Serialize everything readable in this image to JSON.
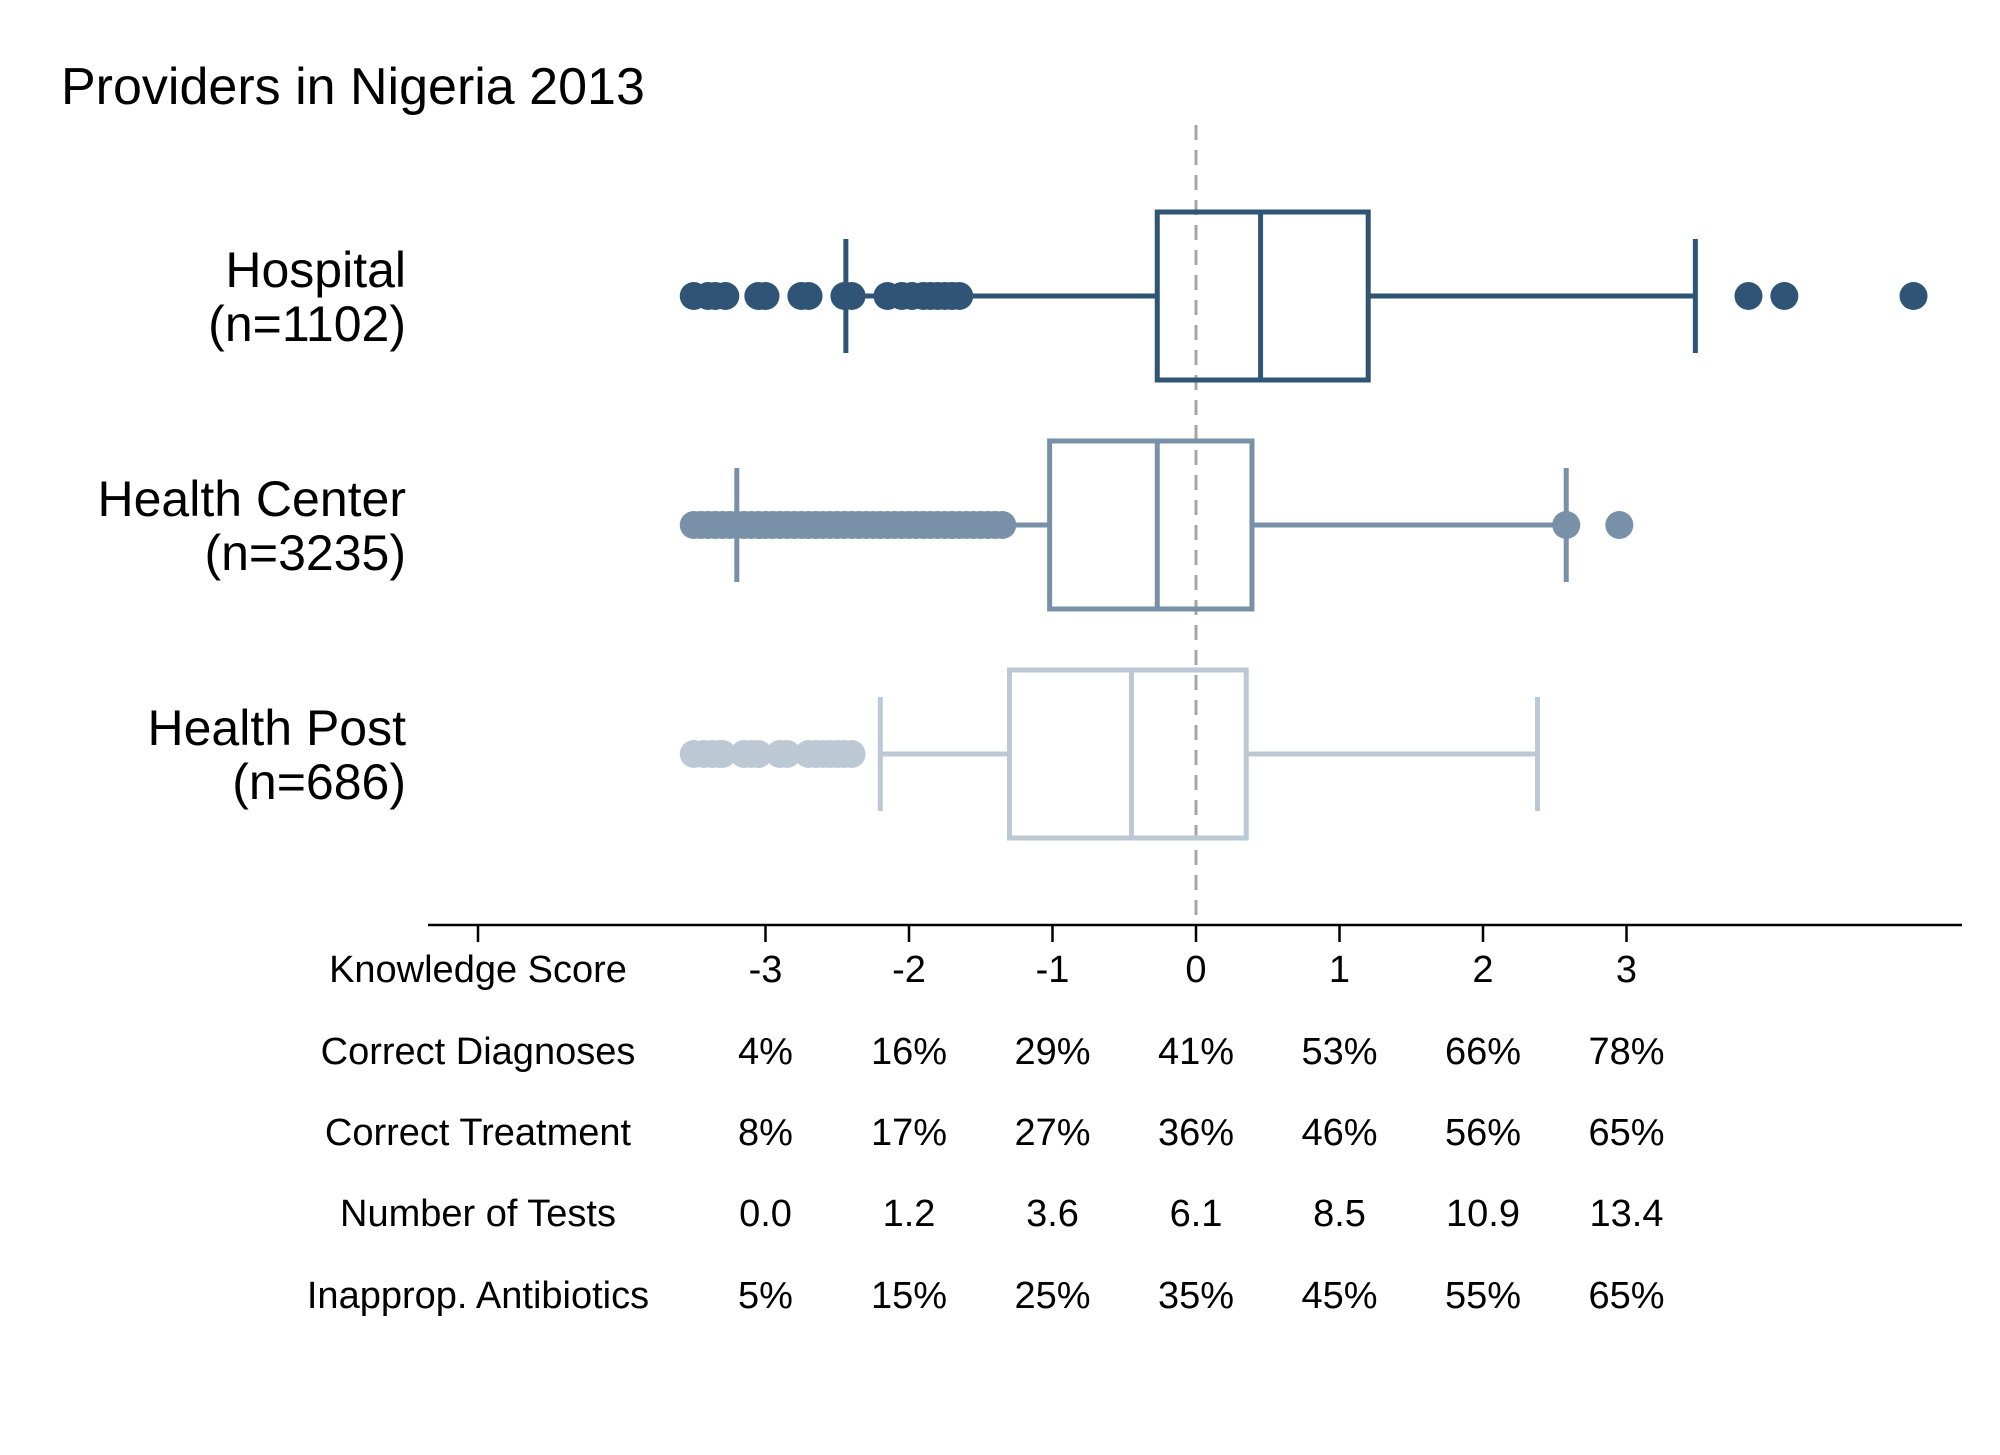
{
  "chart_data": {
    "type": "boxplot",
    "title": "Providers in Nigeria 2013",
    "x_range": [
      -3.5,
      5.3
    ],
    "reference_line_x": 0,
    "groups": [
      {
        "label": "Hospital",
        "n_label": "(n=1102)",
        "color": "#2f5475",
        "q1": -0.27,
        "median": 0.45,
        "q3": 1.2,
        "whisker_low": -2.44,
        "whisker_high": 3.48,
        "outliers": [
          -3.5,
          -3.4,
          -3.35,
          -3.28,
          -3.05,
          -3.0,
          -2.75,
          -2.7,
          -2.45,
          -2.4,
          -2.15,
          -2.05,
          -1.98,
          -1.9,
          -1.85,
          -1.8,
          -1.75,
          -1.7,
          -1.65,
          3.85,
          4.1,
          5.0
        ]
      },
      {
        "label": "Health Center",
        "n_label": "(n=3235)",
        "color": "#7890a8",
        "q1": -1.02,
        "median": -0.27,
        "q3": 0.39,
        "whisker_low": -3.2,
        "whisker_high": 2.58,
        "outliers": [
          -3.5,
          -3.45,
          -3.4,
          -3.35,
          -3.3,
          -3.25,
          -3.2,
          -3.15,
          -3.1,
          -3.05,
          -3.0,
          -2.95,
          -2.9,
          -2.85,
          -2.8,
          -2.75,
          -2.7,
          -2.65,
          -2.6,
          -2.55,
          -2.5,
          -2.45,
          -2.4,
          -2.35,
          -2.3,
          -2.25,
          -2.2,
          -2.15,
          -2.1,
          -2.05,
          -2.0,
          -1.95,
          -1.9,
          -1.85,
          -1.8,
          -1.75,
          -1.7,
          -1.65,
          -1.6,
          -1.55,
          -1.5,
          -1.45,
          -1.4,
          -1.35,
          2.58,
          2.95
        ]
      },
      {
        "label": "Health Post",
        "n_label": "(n=686)",
        "color": "#bcc9d5",
        "q1": -1.3,
        "median": -0.45,
        "q3": 0.35,
        "whisker_low": -2.2,
        "whisker_high": 2.38,
        "outliers": [
          -3.5,
          -3.43,
          -3.37,
          -3.32,
          -3.3,
          -3.15,
          -3.1,
          -3.05,
          -2.9,
          -2.85,
          -2.7,
          -2.65,
          -2.6,
          -2.55,
          -2.5,
          -2.45,
          -2.4
        ]
      }
    ],
    "table": {
      "header_label": "Knowledge Score",
      "columns": [
        "-3",
        "-2",
        "-1",
        "0",
        "1",
        "2",
        "3"
      ],
      "rows": [
        {
          "label": "Correct Diagnoses",
          "values": [
            "4%",
            "16%",
            "29%",
            "41%",
            "53%",
            "66%",
            "78%"
          ]
        },
        {
          "label": "Correct Treatment",
          "values": [
            "8%",
            "17%",
            "27%",
            "36%",
            "46%",
            "56%",
            "65%"
          ]
        },
        {
          "label": "Number of Tests",
          "values": [
            "0.0",
            "1.2",
            "3.6",
            "6.1",
            "8.5",
            "10.9",
            "13.4"
          ]
        },
        {
          "label": "Inapprop. Antibiotics",
          "values": [
            "5%",
            "15%",
            "25%",
            "35%",
            "45%",
            "55%",
            "65%"
          ]
        }
      ]
    }
  }
}
